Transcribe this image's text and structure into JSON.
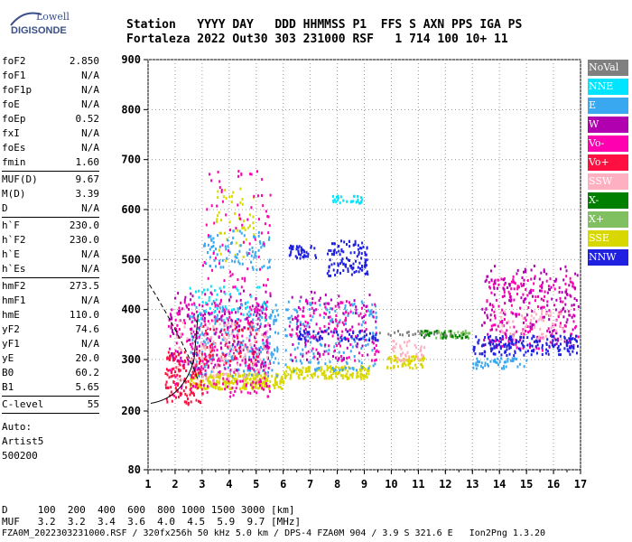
{
  "logo": {
    "line1": "Lowell",
    "line2": "DIGISONDE"
  },
  "header": {
    "line1": "Station   YYYY DAY   DDD HHMMSS P1  FFS S AXN PPS IGA PS",
    "line2": "Fortaleza 2022 Out30 303 231000 RSF   1 714 100 10+ 11"
  },
  "params_group1": [
    {
      "name": "foF2",
      "value": "2.850"
    },
    {
      "name": "foF1",
      "value": "N/A"
    },
    {
      "name": "foF1p",
      "value": "N/A"
    },
    {
      "name": "foE",
      "value": "N/A"
    },
    {
      "name": "foEp",
      "value": "0.52"
    },
    {
      "name": "fxI",
      "value": "N/A"
    },
    {
      "name": "foEs",
      "value": "N/A"
    },
    {
      "name": "fmin",
      "value": "1.60"
    }
  ],
  "params_group2": [
    {
      "name": "MUF(D)",
      "value": "9.67"
    },
    {
      "name": "M(D)",
      "value": "3.39"
    },
    {
      "name": "D",
      "value": "N/A"
    }
  ],
  "params_group3": [
    {
      "name": "h`F",
      "value": "230.0"
    },
    {
      "name": "h`F2",
      "value": "230.0"
    },
    {
      "name": "h`E",
      "value": "N/A"
    },
    {
      "name": "h`Es",
      "value": "N/A"
    }
  ],
  "params_group4": [
    {
      "name": "hmF2",
      "value": "273.5"
    },
    {
      "name": "hmF1",
      "value": "N/A"
    },
    {
      "name": "hmE",
      "value": "110.0"
    },
    {
      "name": "yF2",
      "value": "74.6"
    },
    {
      "name": "yF1",
      "value": "N/A"
    },
    {
      "name": "yE",
      "value": "20.0"
    },
    {
      "name": "B0",
      "value": "60.2"
    },
    {
      "name": "B1",
      "value": "5.65"
    }
  ],
  "params_group5": [
    {
      "name": "C-level",
      "value": "55"
    }
  ],
  "auto": {
    "line1": "Auto:",
    "line2": "Artist5",
    "line3": "500200"
  },
  "legend": [
    {
      "label": "NoVal",
      "color": "#808080"
    },
    {
      "label": "NNE",
      "color": "#00e5ff"
    },
    {
      "label": "E",
      "color": "#3aa8f0"
    },
    {
      "label": "W",
      "color": "#b000b0"
    },
    {
      "label": "Vo-",
      "color": "#ff00b0"
    },
    {
      "label": "Vo+",
      "color": "#ff1040"
    },
    {
      "label": "SSW",
      "color": "#ffb0c0"
    },
    {
      "label": "X-",
      "color": "#008000"
    },
    {
      "label": "X+",
      "color": "#80c060"
    },
    {
      "label": "SSE",
      "color": "#d8d800"
    },
    {
      "label": "NNW",
      "color": "#2020e0"
    }
  ],
  "footer": {
    "line1": "D     100  200  400  600  800 1000 1500 3000 [km]",
    "line2": "MUF   3.2  3.2  3.4  3.6  4.0  4.5  5.9  9.7 [MHz]",
    "file": "FZA0M_2022303231000.RSF / 320fx256h 50 kHz 5.0 km / DPS-4 FZA0M 904 / 3.9 S 321.6 E   Ion2Png 1.3.20"
  },
  "chart_data": {
    "type": "scatter",
    "xlim": [
      1,
      17
    ],
    "ylim": [
      80,
      900
    ],
    "x_ticks": [
      "1",
      "2",
      "3",
      "4",
      "5",
      "6",
      "7",
      "8",
      "9",
      "10",
      "11",
      "12",
      "13",
      "14",
      "15",
      "16",
      "17"
    ],
    "y_ticks": [
      "80",
      "200",
      "300",
      "400",
      "500",
      "600",
      "700",
      "800",
      "900"
    ],
    "grid": true,
    "clusters": [
      {
        "series": "SSE",
        "x": [
          2.5,
          6.0
        ],
        "y": [
          245,
          275
        ],
        "n": 260
      },
      {
        "series": "SSE",
        "x": [
          6.0,
          9.2
        ],
        "y": [
          265,
          290
        ],
        "n": 160
      },
      {
        "series": "SSE",
        "x": [
          9.8,
          11.2
        ],
        "y": [
          285,
          310
        ],
        "n": 60
      },
      {
        "series": "SSE",
        "x": [
          3.5,
          5.0
        ],
        "y": [
          500,
          650
        ],
        "n": 50
      },
      {
        "series": "E",
        "x": [
          2.5,
          5.8
        ],
        "y": [
          270,
          420
        ],
        "n": 240
      },
      {
        "series": "E",
        "x": [
          6.0,
          9.5
        ],
        "y": [
          280,
          420
        ],
        "n": 170
      },
      {
        "series": "E",
        "x": [
          3.0,
          5.5
        ],
        "y": [
          480,
          560
        ],
        "n": 90
      },
      {
        "series": "E",
        "x": [
          13.0,
          15.0
        ],
        "y": [
          285,
          305
        ],
        "n": 50
      },
      {
        "series": "Vo-",
        "x": [
          1.7,
          5.5
        ],
        "y": [
          230,
          420
        ],
        "n": 280
      },
      {
        "series": "Vo-",
        "x": [
          6.2,
          9.5
        ],
        "y": [
          300,
          420
        ],
        "n": 130
      },
      {
        "series": "Vo-",
        "x": [
          13.5,
          16.9
        ],
        "y": [
          320,
          470
        ],
        "n": 200
      },
      {
        "series": "Vo-",
        "x": [
          3.0,
          5.5
        ],
        "y": [
          420,
          680
        ],
        "n": 80
      },
      {
        "series": "Vo+",
        "x": [
          1.6,
          3.0
        ],
        "y": [
          215,
          320
        ],
        "n": 140
      },
      {
        "series": "Vo+",
        "x": [
          3.0,
          5.0
        ],
        "y": [
          290,
          380
        ],
        "n": 70
      },
      {
        "series": "W",
        "x": [
          1.8,
          5.5
        ],
        "y": [
          280,
          440
        ],
        "n": 170
      },
      {
        "series": "W",
        "x": [
          6.2,
          9.5
        ],
        "y": [
          300,
          440
        ],
        "n": 80
      },
      {
        "series": "W",
        "x": [
          13.3,
          16.9
        ],
        "y": [
          330,
          490
        ],
        "n": 160
      },
      {
        "series": "SSW",
        "x": [
          2.0,
          5.5
        ],
        "y": [
          260,
          380
        ],
        "n": 120
      },
      {
        "series": "SSW",
        "x": [
          10.0,
          11.2
        ],
        "y": [
          300,
          340
        ],
        "n": 40
      },
      {
        "series": "SSW",
        "x": [
          14.0,
          16.5
        ],
        "y": [
          340,
          400
        ],
        "n": 60
      },
      {
        "series": "NNW",
        "x": [
          7.6,
          9.1
        ],
        "y": [
          470,
          540
        ],
        "n": 110
      },
      {
        "series": "NNW",
        "x": [
          6.2,
          7.2
        ],
        "y": [
          505,
          530
        ],
        "n": 40
      },
      {
        "series": "NNW",
        "x": [
          13.0,
          16.9
        ],
        "y": [
          310,
          350
        ],
        "n": 170
      },
      {
        "series": "NNW",
        "x": [
          6.5,
          9.5
        ],
        "y": [
          340,
          360
        ],
        "n": 60
      },
      {
        "series": "NNE",
        "x": [
          7.8,
          8.9
        ],
        "y": [
          615,
          630
        ],
        "n": 30
      },
      {
        "series": "NNE",
        "x": [
          2.5,
          5.5
        ],
        "y": [
          380,
          450
        ],
        "n": 50
      },
      {
        "series": "X+",
        "x": [
          11.0,
          13.0
        ],
        "y": [
          345,
          360
        ],
        "n": 40
      },
      {
        "series": "X-",
        "x": [
          11.0,
          12.8
        ],
        "y": [
          345,
          360
        ],
        "n": 30
      },
      {
        "series": "NoVal",
        "x": [
          9.5,
          12.5
        ],
        "y": [
          350,
          360
        ],
        "n": 20
      }
    ]
  }
}
